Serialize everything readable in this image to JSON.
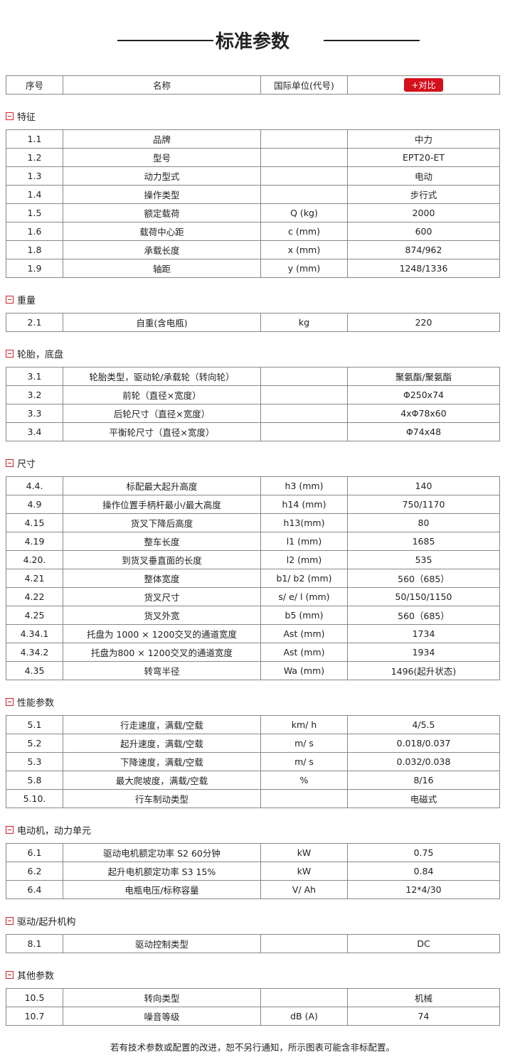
{
  "title": "标准参数",
  "header": {
    "no": "序号",
    "name": "名称",
    "unit": "国际单位(代号)",
    "compare": "+对比"
  },
  "accent": "#d50f1b",
  "sections": [
    {
      "title": "特征",
      "rows": [
        [
          "1.1",
          "品牌",
          "",
          "中力"
        ],
        [
          "1.2",
          "型号",
          "",
          "EPT20-ET"
        ],
        [
          "1.3",
          "动力型式",
          "",
          "电动"
        ],
        [
          "1.4",
          "操作类型",
          "",
          "步行式"
        ],
        [
          "1.5",
          "额定载荷",
          "Q (kg)",
          "2000"
        ],
        [
          "1.6",
          "载荷中心距",
          "c (mm)",
          "600"
        ],
        [
          "1.8",
          "承载长度",
          "x (mm)",
          "874/962"
        ],
        [
          "1.9",
          "轴距",
          "y (mm)",
          "1248/1336"
        ]
      ]
    },
    {
      "title": "重量",
      "rows": [
        [
          "2.1",
          "自重(含电瓶)",
          "kg",
          "220"
        ]
      ]
    },
    {
      "title": "轮胎，底盘",
      "rows": [
        [
          "3.1",
          "轮胎类型，驱动轮/承载轮（转向轮）",
          "",
          "聚氨酯/聚氨酯"
        ],
        [
          "3.2",
          "前轮（直径×宽度）",
          "",
          "Φ250x74"
        ],
        [
          "3.3",
          "后轮尺寸（直径×宽度）",
          "",
          "4xΦ78x60"
        ],
        [
          "3.4",
          "平衡轮尺寸（直径×宽度）",
          "",
          "Φ74x48"
        ]
      ]
    },
    {
      "title": "尺寸",
      "rows": [
        [
          "4.4.",
          "标配最大起升高度",
          "h3 (mm)",
          "140"
        ],
        [
          "4.9",
          "操作位置手柄杆最小/最大高度",
          "h14 (mm)",
          "750/1170"
        ],
        [
          "4.15",
          "货叉下降后高度",
          "h13(mm)",
          "80"
        ],
        [
          "4.19",
          "整车长度",
          "l1 (mm)",
          "1685"
        ],
        [
          "4.20.",
          "到货叉垂直面的长度",
          "l2 (mm)",
          "535"
        ],
        [
          "4.21",
          "整体宽度",
          "b1/ b2 (mm)",
          "560（685）"
        ],
        [
          "4.22",
          "货叉尺寸",
          "s/ e/ l (mm)",
          "50/150/1150"
        ],
        [
          "4.25",
          "货叉外宽",
          "b5 (mm)",
          "560（685）"
        ],
        [
          "4.34.1",
          "托盘为 1000 × 1200交叉的通道宽度",
          "Ast (mm)",
          "1734"
        ],
        [
          "4.34.2",
          "托盘为800 × 1200交叉的通道宽度",
          "Ast (mm)",
          "1934"
        ],
        [
          "4.35",
          "转弯半径",
          "Wa (mm)",
          "1496(起升状态)"
        ]
      ]
    },
    {
      "title": "性能参数",
      "rows": [
        [
          "5.1",
          "行走速度，满载/空载",
          "km/ h",
          "4/5.5"
        ],
        [
          "5.2",
          "起升速度，满载/空载",
          "m/ s",
          "0.018/0.037"
        ],
        [
          "5.3",
          "下降速度，满载/空载",
          "m/ s",
          "0.032/0.038"
        ],
        [
          "5.8",
          "最大爬坡度，满载/空载",
          "%",
          "8/16"
        ],
        [
          "5.10.",
          "行车制动类型",
          "",
          "电磁式"
        ]
      ]
    },
    {
      "title": "电动机，动力单元",
      "rows": [
        [
          "6.1",
          "驱动电机额定功率 S2 60分钟",
          "kW",
          "0.75"
        ],
        [
          "6.2",
          "起升电机额定功率 S3 15%",
          "kW",
          "0.84"
        ],
        [
          "6.4",
          "电瓶电压/标称容量",
          "V/ Ah",
          "12*4/30"
        ]
      ]
    },
    {
      "title": "驱动/起升机构",
      "rows": [
        [
          "8.1",
          "驱动控制类型",
          "",
          "DC"
        ]
      ]
    },
    {
      "title": "其他参数",
      "rows": [
        [
          "10.5",
          "转向类型",
          "",
          "机械"
        ],
        [
          "10.7",
          "噪音等级",
          "dB (A)",
          "74"
        ]
      ]
    }
  ],
  "footer": "若有技术参数或配置的改进，恕不另行通知，所示图表可能含非标配置。"
}
